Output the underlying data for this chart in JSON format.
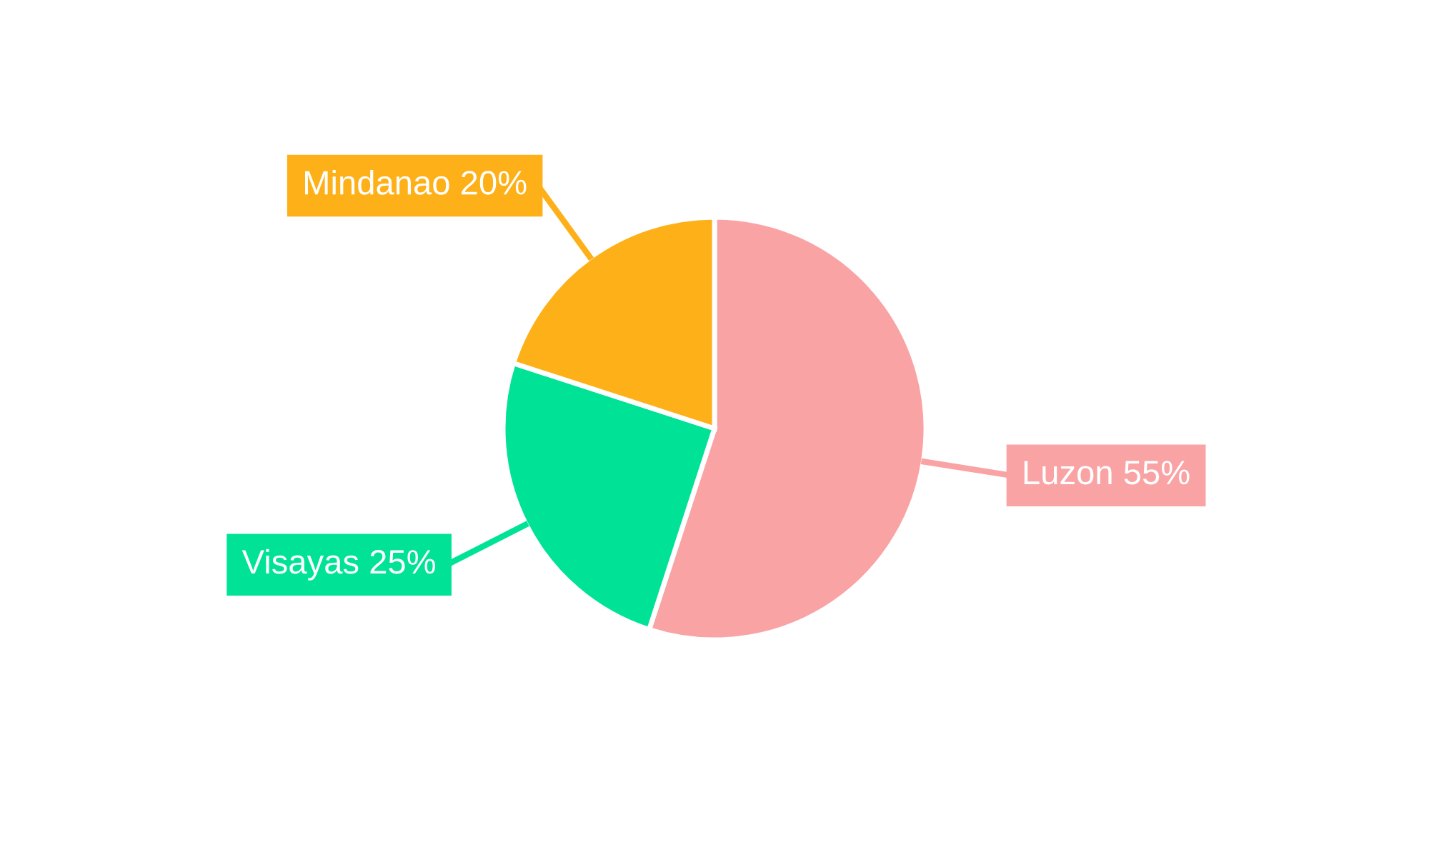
{
  "chart_data": {
    "type": "pie",
    "categories": [
      "Luzon",
      "Visayas",
      "Mindanao"
    ],
    "values": [
      55,
      25,
      20
    ],
    "value_labels": [
      "55%",
      "25%",
      "20%"
    ],
    "colors": [
      "#f9a3a4",
      "#00e396",
      "#feb019"
    ],
    "legend": false
  }
}
